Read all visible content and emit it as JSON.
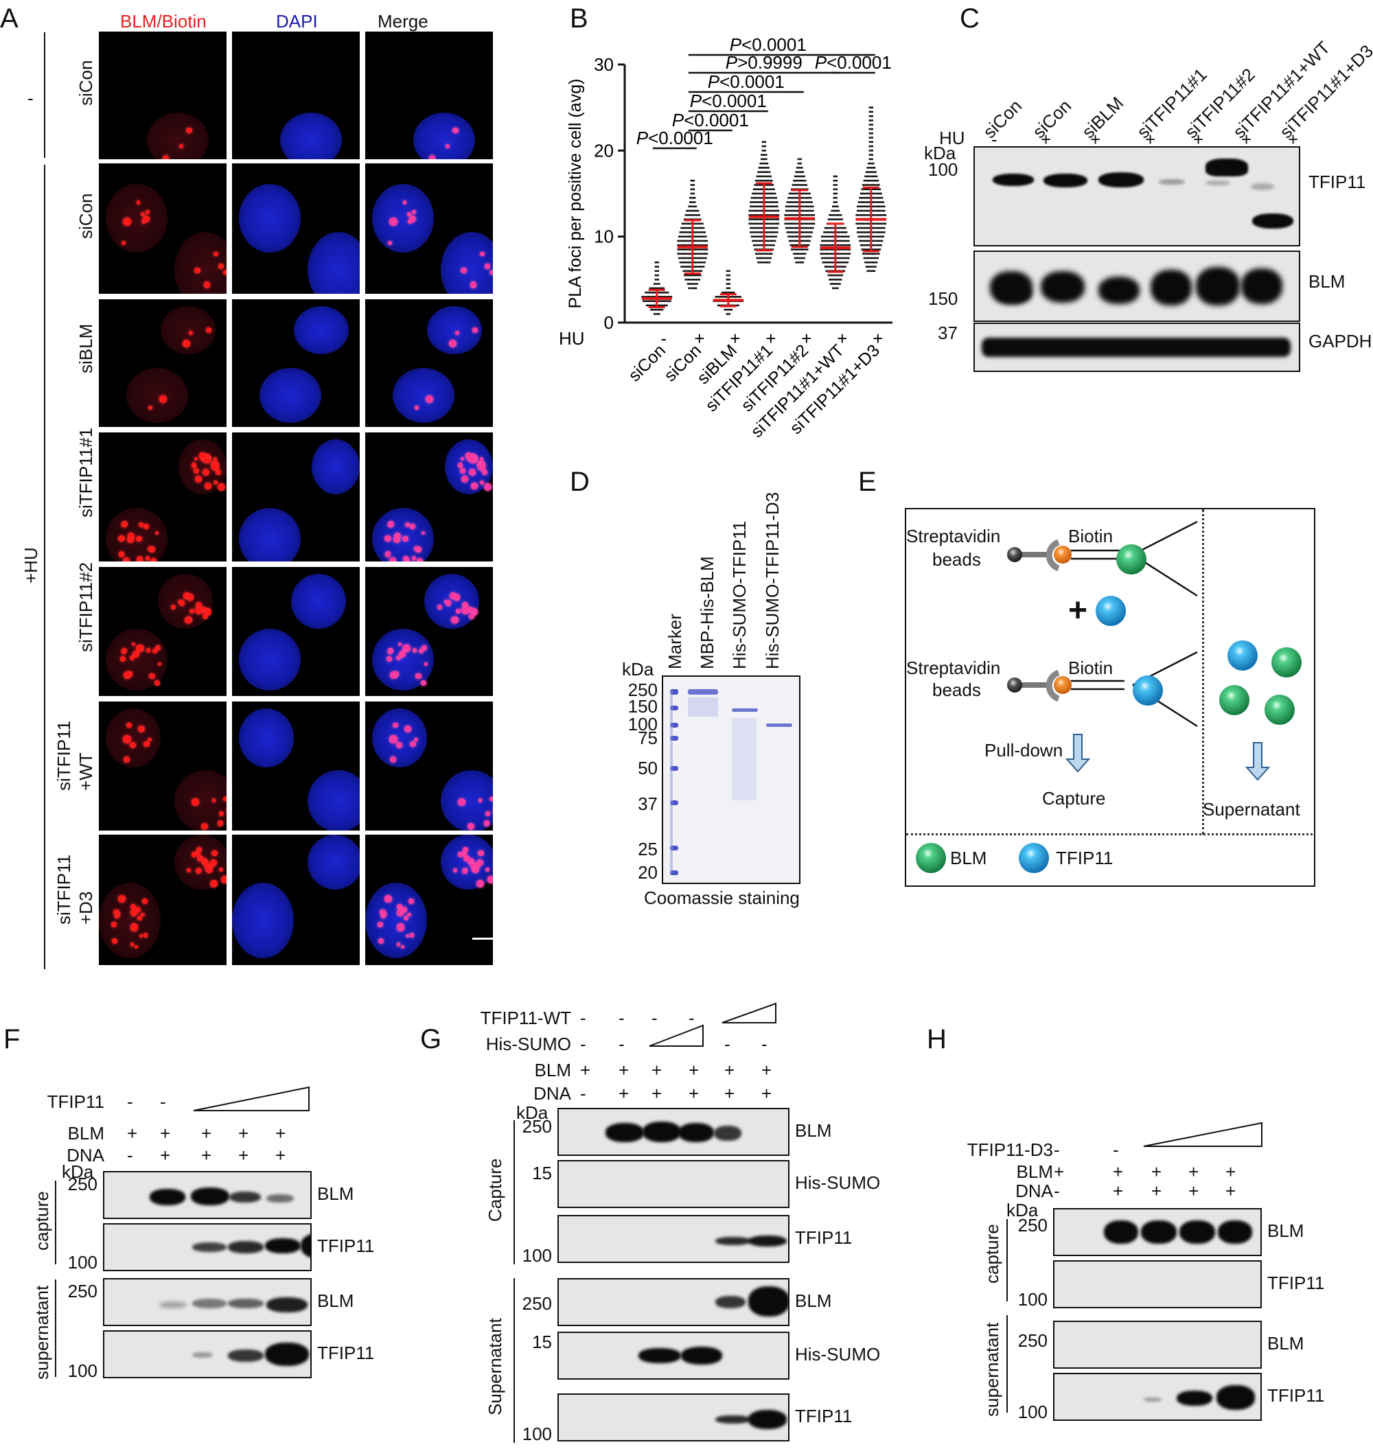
{
  "panels": {
    "A": {
      "label": "A",
      "col_headers": [
        "BLM/Biotin",
        "DAPI",
        "Merge"
      ],
      "group_minus": "-",
      "group_hu": "+HU",
      "rows": [
        "siCon",
        "siCon",
        "siBLM",
        "siTFIP11#1",
        "siTFIP11#2",
        "siTFIP11\n+WT",
        "siTFIP11\n+D3"
      ],
      "colors": {
        "blm": "#e8201f",
        "dapi": "#1a1ab0"
      }
    },
    "B": {
      "label": "B",
      "hu_label": "HU",
      "hu_signs": [
        "-",
        "+",
        "+",
        "+",
        "+",
        "+",
        "+"
      ],
      "pvals": [
        "P<0.0001",
        "P>0.9999",
        "P<0.0001",
        "P<0.0001",
        "P<0.0001",
        "P<0.0001",
        "P<0.0001"
      ]
    },
    "C": {
      "label": "C",
      "lanes": [
        "siCon",
        "siCon",
        "siBLM",
        "siTFIP11#1",
        "siTFIP11#2",
        "siTFIP11#1+WT",
        "siTFIP11#1+D3"
      ],
      "hu_label": "HU",
      "hu_signs": [
        "-",
        "+",
        "+",
        "+",
        "+",
        "+",
        "+"
      ],
      "kda": "kDa",
      "markers": [
        "100",
        "150",
        "37"
      ],
      "blots": [
        "TFIP11",
        "BLM",
        "GAPDH"
      ]
    },
    "D": {
      "label": "D",
      "lanes": [
        "Marker",
        "MBP-His-BLM",
        "His-SUMO-TFIP11",
        "His-SUMO-TFIP11-D3"
      ],
      "kda": "kDa",
      "markers": [
        "250",
        "150",
        "100",
        "75",
        "50",
        "37",
        "25",
        "20"
      ],
      "caption": "Coomassie staining"
    },
    "E": {
      "label": "E",
      "strep1": "Streptavidin",
      "beads1": "beads",
      "biotin1": "Biotin",
      "strep2": "Streptavidin",
      "beads2": "beads",
      "biotin2": "Biotin",
      "plus": "+",
      "pulldown": "Pull-down",
      "capture": "Capture",
      "supernatant": "Supernatant",
      "legend_blm": "BLM",
      "legend_tfip": "TFIP11",
      "colors": {
        "blm": "#1fa35a",
        "tfip": "#1e9fe0",
        "biotin": "#ef7d22",
        "bead": "#555555"
      }
    },
    "F": {
      "label": "F",
      "rows": [
        {
          "name": "TFIP11",
          "signs": [
            "-",
            "-"
          ]
        },
        {
          "name": "BLM",
          "signs": [
            "+",
            "+",
            "+",
            "+",
            "+"
          ]
        },
        {
          "name": "DNA",
          "signs": [
            "-",
            "+",
            "+",
            "+",
            "+"
          ]
        }
      ],
      "kda": "kDa",
      "capture": "capture",
      "supernatant": "supernatant",
      "markers": [
        "250",
        "100",
        "250",
        "100"
      ],
      "blots": [
        "BLM",
        "TFIP11",
        "BLM",
        "TFIP11"
      ]
    },
    "G": {
      "label": "G",
      "rows": [
        {
          "name": "TFIP11-WT",
          "signs": [
            "-",
            "-",
            "-",
            "-"
          ]
        },
        {
          "name": "His-SUMO",
          "signs": [
            "-",
            "-",
            "-",
            "-"
          ]
        },
        {
          "name": "BLM",
          "signs": [
            "+",
            "+",
            "+",
            "+",
            "+",
            "+"
          ]
        },
        {
          "name": "DNA",
          "signs": [
            "-",
            "+",
            "+",
            "+",
            "+",
            "+"
          ]
        }
      ],
      "kda": "kDa",
      "capture": "Capture",
      "supernatant": "Supernatant",
      "markers": [
        "250",
        "15",
        "100",
        "250",
        "15",
        "100"
      ],
      "blots": [
        "BLM",
        "His-SUMO",
        "TFIP11",
        "BLM",
        "His-SUMO",
        "TFIP11"
      ]
    },
    "H": {
      "label": "H",
      "rows": [
        {
          "name": "TFIP11-D3",
          "signs": [
            "-",
            "-"
          ]
        },
        {
          "name": "BLM",
          "signs": [
            "+",
            "+",
            "+",
            "+",
            "+"
          ]
        },
        {
          "name": "DNA",
          "signs": [
            "-",
            "+",
            "+",
            "+",
            "+"
          ]
        }
      ],
      "kda": "kDa",
      "capture": "capture",
      "supernatant": "supernatant",
      "markers": [
        "250",
        "100",
        "250",
        "100"
      ],
      "blots": [
        "BLM",
        "TFIP11",
        "BLM",
        "TFIP11"
      ]
    }
  },
  "chart_data": {
    "type": "scatter",
    "ylabel": "PLA foci per positive cell (avg)",
    "ylim": [
      0,
      30
    ],
    "yticks": [
      0,
      10,
      20,
      30
    ],
    "categories": [
      "siCon",
      "siCon",
      "siBLM",
      "siTFIP11#1",
      "siTFIP11#2",
      "siTFIP11#1+WT",
      "siTFIP11#1+D3"
    ],
    "hu": [
      "-",
      "+",
      "+",
      "+",
      "+",
      "+",
      "+"
    ],
    "mean": [
      2.8,
      8.8,
      2.6,
      12.3,
      12.1,
      8.7,
      12.0
    ],
    "sd": [
      1.0,
      3.1,
      0.7,
      3.9,
      3.3,
      2.8,
      3.7
    ],
    "min": [
      1.0,
      4.0,
      1.0,
      7.0,
      7.0,
      4.0,
      6.0
    ],
    "max": [
      7.0,
      16.5,
      6.0,
      21.0,
      19.0,
      17.0,
      25.0
    ],
    "mean_color": "#e21a1a",
    "comparisons": [
      {
        "a": 0,
        "b": 1,
        "p": "P<0.0001"
      },
      {
        "a": 1,
        "b": 2,
        "p": "P<0.0001"
      },
      {
        "a": 1,
        "b": 3,
        "p": "P<0.0001"
      },
      {
        "a": 1,
        "b": 4,
        "p": "P<0.0001"
      },
      {
        "a": 1,
        "b": 5,
        "p": "P>0.9999"
      },
      {
        "a": 5,
        "b": 6,
        "p": "P<0.0001"
      },
      {
        "a": 1,
        "b": 6,
        "p": "P<0.0001"
      }
    ]
  }
}
